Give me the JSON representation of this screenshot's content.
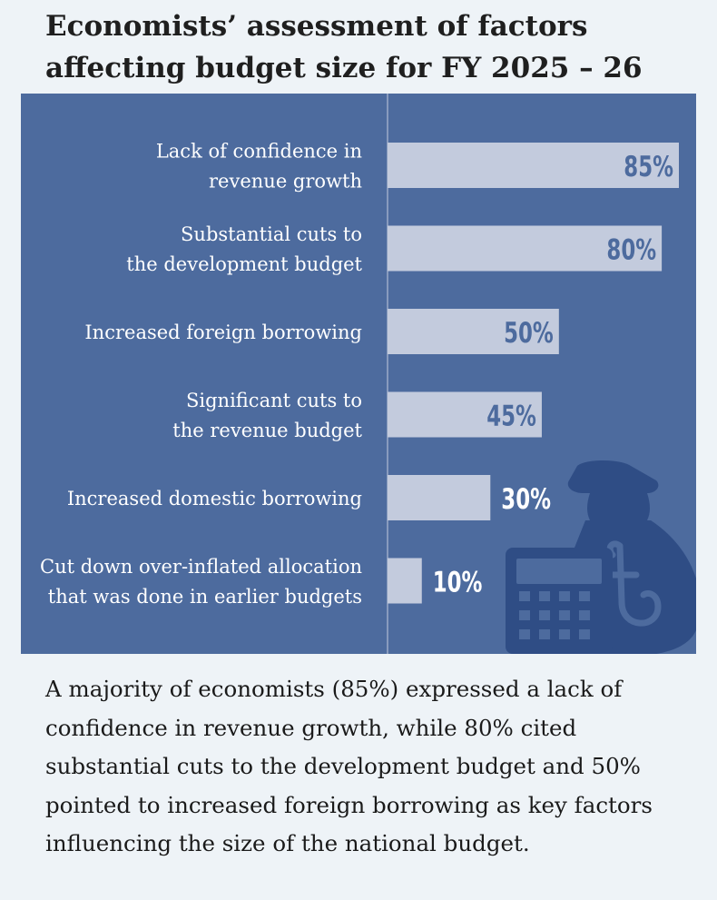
{
  "title": {
    "lines": [
      "Economists’ assessment of factors",
      "affecting budget size for FY 2025 – 26"
    ]
  },
  "chart_data": {
    "type": "bar",
    "orientation": "horizontal",
    "title": "Economists’ assessment of factors affecting budget size for FY 2025 – 26",
    "categories": [
      [
        "Lack of confidence in",
        "revenue growth"
      ],
      [
        "Substantial cuts to",
        "the development budget"
      ],
      [
        "Increased foreign borrowing"
      ],
      [
        "Significant cuts to",
        "the revenue budget"
      ],
      [
        "Increased domestic borrowing"
      ],
      [
        "Cut down over-inflated allocation",
        "that was done in earlier budgets"
      ]
    ],
    "values": [
      85,
      80,
      50,
      45,
      30,
      10
    ],
    "value_labels": [
      "85%",
      "80%",
      "50%",
      "45%",
      "30%",
      "10%"
    ],
    "unit": "%",
    "xlim": [
      0,
      85
    ],
    "xlabel": "",
    "ylabel": "",
    "legend": "none",
    "grid": false
  },
  "decoration": {
    "icon_names": [
      "money-bag-icon",
      "taka-symbol-icon",
      "calculator-icon"
    ]
  },
  "colors": {
    "panel": "#4d6b9e",
    "bar": "#c3cbdd",
    "bar_label_inside": "#4d6b9e",
    "bar_label_outside": "#ffffff",
    "icon": "#2f4d85"
  },
  "caption": {
    "lines": [
      "A majority of economists (85%) expressed a lack of",
      "confidence in revenue growth, while 80% cited",
      "substantial cuts to the development budget and 50%",
      "pointed to increased foreign borrowing as key factors",
      "influencing the size of the national budget."
    ]
  }
}
